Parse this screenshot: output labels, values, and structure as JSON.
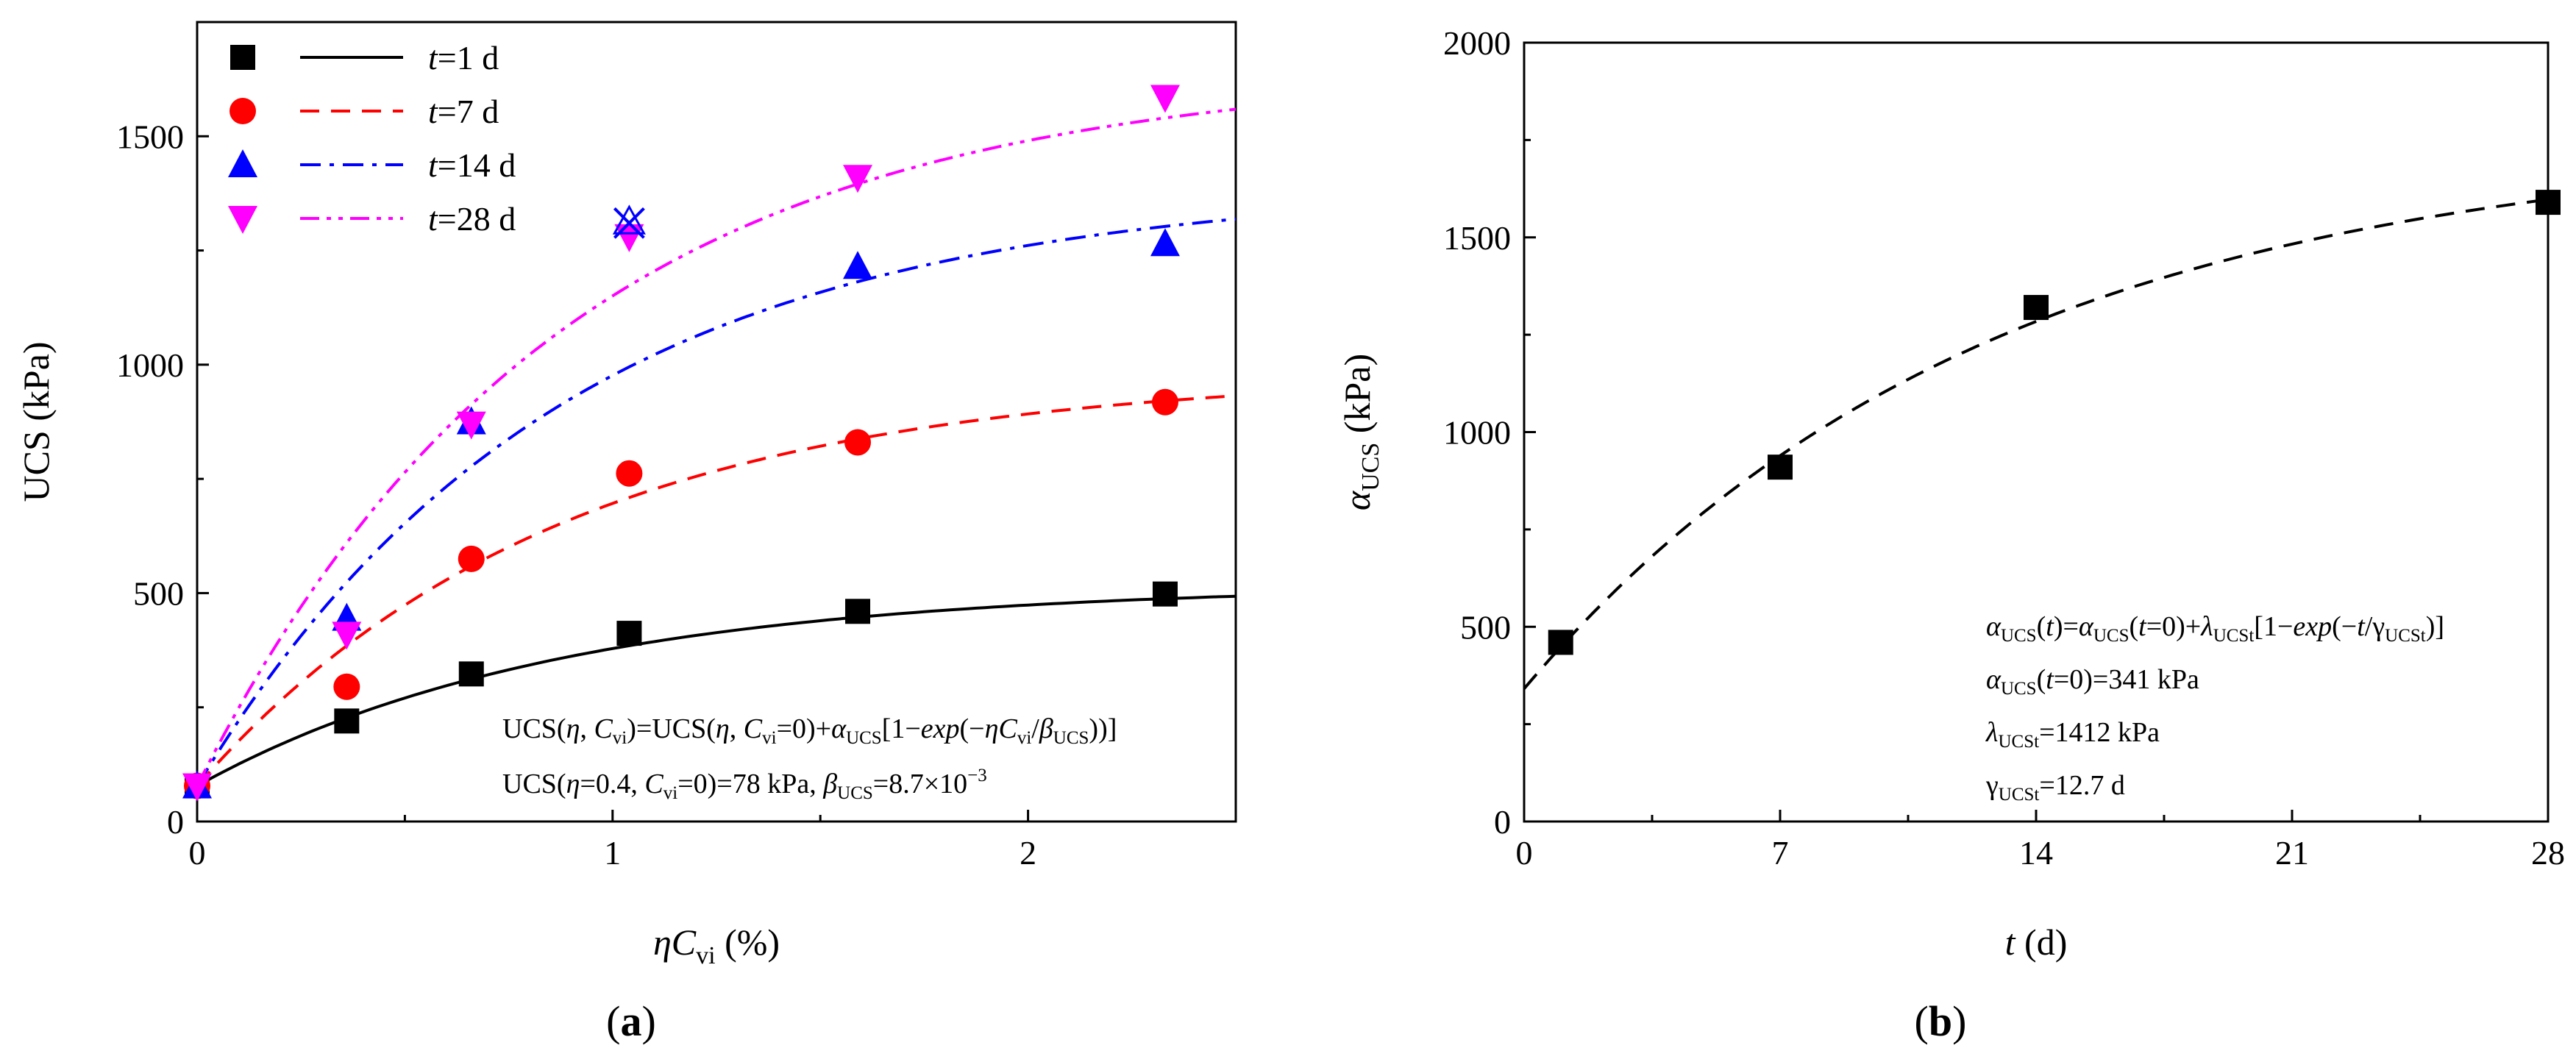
{
  "chart_data": [
    {
      "type": "scatter",
      "panel_label": "(a)",
      "x_label_main": "ηC",
      "x_label_sub": "vi",
      "x_label_unit": " (%)",
      "ylabel": "UCS (kPa)",
      "xlim": [
        0,
        2.5
      ],
      "ylim": [
        0,
        1750
      ],
      "x_ticks": [
        0,
        1,
        2
      ],
      "x_tick_labels": [
        "0",
        "1",
        "2"
      ],
      "y_ticks": [
        0,
        500,
        1000,
        1500
      ],
      "y_tick_labels": [
        "0",
        "500",
        "1000",
        "1500"
      ],
      "legend_position": "top-left",
      "series": [
        {
          "name": "t=1 d",
          "legend_t": "t",
          "legend_rest": "=1 d",
          "color": "#000000",
          "marker": "square",
          "line": "solid",
          "x": [
            0.0,
            0.36,
            0.66,
            1.04,
            1.59,
            2.33
          ],
          "y": [
            78,
            220,
            323,
            412,
            460,
            498
          ],
          "fit": {
            "base": 78,
            "alpha": 440,
            "beta_pct": 0.87
          }
        },
        {
          "name": "t=7 d",
          "legend_t": "t",
          "legend_rest": "=7 d",
          "color": "#ff0000",
          "marker": "circle",
          "line": "dashed",
          "x": [
            0.0,
            0.36,
            0.66,
            1.04,
            1.59,
            2.33
          ],
          "y": [
            78,
            295,
            575,
            762,
            830,
            918
          ],
          "fit": {
            "base": 78,
            "alpha": 905,
            "beta_pct": 0.87
          }
        },
        {
          "name": "t=14 d",
          "legend_t": "t",
          "legend_rest": "=14 d",
          "color": "#0000ff",
          "marker": "triangle-up",
          "line": "dash-dot",
          "x": [
            0.0,
            0.36,
            0.66,
            1.59,
            2.33
          ],
          "y": [
            78,
            445,
            875,
            1215,
            1265
          ],
          "fit": {
            "base": 78,
            "alpha": 1315,
            "beta_pct": 0.87
          }
        },
        {
          "name": "t=28 d",
          "legend_t": "t",
          "legend_rest": "=28 d",
          "color": "#ff00ff",
          "marker": "triangle-down",
          "line": "dash-dot-dot",
          "x": [
            0.0,
            0.36,
            0.66,
            1.04,
            1.59,
            2.33
          ],
          "y": [
            78,
            410,
            870,
            1280,
            1410,
            1585
          ],
          "fit": {
            "base": 78,
            "alpha": 1570,
            "beta_pct": 0.87
          }
        }
      ],
      "outlier": {
        "x": 1.04,
        "y": 1310,
        "color": "#0000ff",
        "marker": "cross"
      },
      "annotations": [
        {
          "segments": [
            {
              "text": "UCS(",
              "italic": false
            },
            {
              "text": "η",
              "italic": true
            },
            {
              "text": ", ",
              "italic": false
            },
            {
              "text": "C",
              "italic": true
            },
            {
              "text": "vi",
              "italic": false,
              "sub": true
            },
            {
              "text": ")=UCS(",
              "italic": false
            },
            {
              "text": "η",
              "italic": true
            },
            {
              "text": ", ",
              "italic": false
            },
            {
              "text": "C",
              "italic": true
            },
            {
              "text": "vi",
              "italic": false,
              "sub": true
            },
            {
              "text": "=0)+",
              "italic": false
            },
            {
              "text": "α",
              "italic": true
            },
            {
              "text": "UCS",
              "italic": false,
              "sub": true
            },
            {
              "text": "[1−",
              "italic": false
            },
            {
              "text": "exp",
              "italic": true
            },
            {
              "text": "(−",
              "italic": false
            },
            {
              "text": "ηC",
              "italic": true
            },
            {
              "text": "vi",
              "italic": false,
              "sub": true
            },
            {
              "text": "/",
              "italic": false
            },
            {
              "text": "β",
              "italic": true
            },
            {
              "text": "UCS",
              "italic": false,
              "sub": true
            },
            {
              "text": "))]",
              "italic": false
            }
          ]
        },
        {
          "segments": [
            {
              "text": "UCS(",
              "italic": false
            },
            {
              "text": "η",
              "italic": true
            },
            {
              "text": "=0.4, ",
              "italic": false
            },
            {
              "text": "C",
              "italic": true
            },
            {
              "text": "vi",
              "italic": false,
              "sub": true
            },
            {
              "text": "=0)=78 kPa, ",
              "italic": false
            },
            {
              "text": "β",
              "italic": true
            },
            {
              "text": "UCS",
              "italic": false,
              "sub": true
            },
            {
              "text": "=8.7×10",
              "italic": false
            },
            {
              "text": "−3",
              "italic": false,
              "sup": true
            }
          ]
        }
      ]
    },
    {
      "type": "scatter",
      "panel_label": "(b)",
      "x_label_main": "t",
      "x_label_unit": " (d)",
      "y_label_main": "α",
      "y_label_sub": "UCS",
      "y_label_unit": " (kPa)",
      "xlim": [
        0,
        28
      ],
      "ylim": [
        0,
        2000
      ],
      "x_ticks": [
        0,
        7,
        14,
        21,
        28
      ],
      "x_tick_labels": [
        "0",
        "7",
        "14",
        "21",
        "28"
      ],
      "y_ticks": [
        0,
        500,
        1000,
        1500,
        2000
      ],
      "y_tick_labels": [
        "0",
        "500",
        "1000",
        "1500",
        "2000"
      ],
      "series": [
        {
          "name": "α_UCS",
          "color": "#000000",
          "marker": "square",
          "line": "dashed",
          "x": [
            1,
            7,
            14,
            28
          ],
          "y": [
            460,
            910,
            1320,
            1590
          ],
          "fit": {
            "a0": 341,
            "lambda": 1412,
            "gamma": 12.7
          }
        }
      ],
      "annotations": [
        {
          "segments": [
            {
              "text": "α",
              "italic": true
            },
            {
              "text": "UCS",
              "italic": false,
              "sub": true
            },
            {
              "text": "(",
              "italic": false
            },
            {
              "text": "t",
              "italic": true
            },
            {
              "text": ")=",
              "italic": false
            },
            {
              "text": "α",
              "italic": true
            },
            {
              "text": "UCS",
              "italic": false,
              "sub": true
            },
            {
              "text": "(",
              "italic": false
            },
            {
              "text": "t",
              "italic": true
            },
            {
              "text": "=0)+",
              "italic": false
            },
            {
              "text": "λ",
              "italic": true
            },
            {
              "text": "UCSt",
              "italic": false,
              "sub": true
            },
            {
              "text": "[1−",
              "italic": false
            },
            {
              "text": "exp",
              "italic": true
            },
            {
              "text": "(−",
              "italic": false
            },
            {
              "text": "t",
              "italic": true
            },
            {
              "text": "/γ",
              "italic": false
            },
            {
              "text": "UCSt",
              "italic": false,
              "sub": true
            },
            {
              "text": ")]",
              "italic": false
            }
          ]
        },
        {
          "segments": [
            {
              "text": "α",
              "italic": true
            },
            {
              "text": "UCS",
              "italic": false,
              "sub": true
            },
            {
              "text": "(",
              "italic": false
            },
            {
              "text": "t",
              "italic": true
            },
            {
              "text": "=0)=341 kPa",
              "italic": false
            }
          ]
        },
        {
          "segments": [
            {
              "text": "λ",
              "italic": true
            },
            {
              "text": "UCSt",
              "italic": false,
              "sub": true
            },
            {
              "text": "=1412 kPa",
              "italic": false
            }
          ]
        },
        {
          "segments": [
            {
              "text": "γ",
              "italic": false
            },
            {
              "text": "UCSt",
              "italic": false,
              "sub": true
            },
            {
              "text": "=12.7 d",
              "italic": false
            }
          ]
        }
      ]
    }
  ]
}
